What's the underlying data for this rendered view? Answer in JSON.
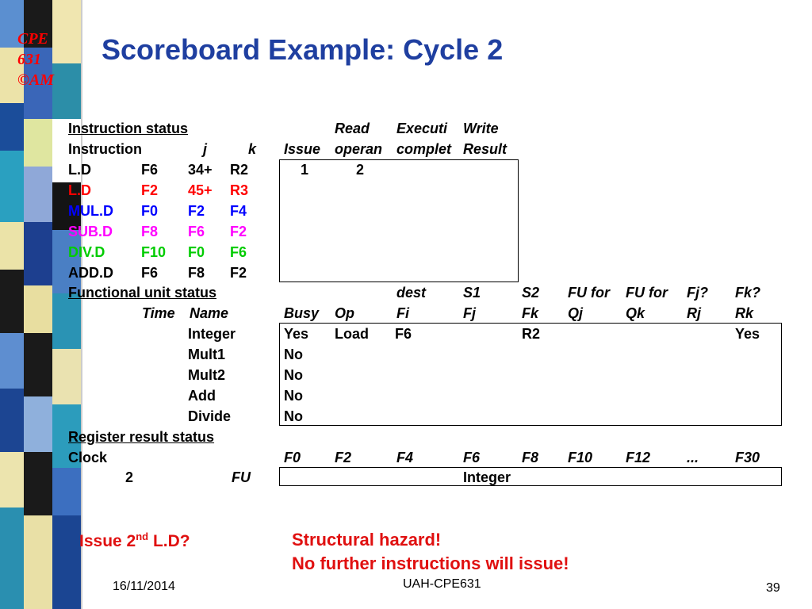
{
  "corner_logo": {
    "line1": "CPE",
    "line2": "631",
    "line3": "©AM"
  },
  "title": "Scoreboard Example: Cycle 2",
  "instruction_status": {
    "header": "Instruction status",
    "col_read": "Read",
    "col_exec": "Executi",
    "col_write": "Write",
    "sub_instruction": "Instruction",
    "sub_j": "j",
    "sub_k": "k",
    "sub_issue": "Issue",
    "sub_read": "operan",
    "sub_exec": "complet",
    "sub_write": "Result",
    "rows": [
      {
        "op": "L.D",
        "d": "F6",
        "j": "34+",
        "k": "R2",
        "issue": "1",
        "read": "2",
        "color": "#000000"
      },
      {
        "op": "L.D",
        "d": "F2",
        "j": "45+",
        "k": "R3",
        "issue": "",
        "read": "",
        "color": "#ff0000"
      },
      {
        "op": "MUL.D",
        "d": "F0",
        "j": "F2",
        "k": "F4",
        "issue": "",
        "read": "",
        "color": "#0000ff"
      },
      {
        "op": "SUB.D",
        "d": "F8",
        "j": "F6",
        "k": "F2",
        "issue": "",
        "read": "",
        "color": "#ff00ff"
      },
      {
        "op": "DIV.D",
        "d": "F10",
        "j": "F0",
        "k": "F6",
        "issue": "",
        "read": "",
        "color": "#00cc00"
      },
      {
        "op": "ADD.D",
        "d": "F6",
        "j": "F8",
        "k": "F2",
        "issue": "",
        "read": "",
        "color": "#000000"
      }
    ]
  },
  "functional_unit_status": {
    "header": "Functional unit status",
    "h_dest": "dest",
    "h_s1": "S1",
    "h_s2": "S2",
    "h_fuj": "FU for",
    "h_fuk": "FU for",
    "h_fjq": "Fj?",
    "h_fkq": "Fk?",
    "c_time": "Time",
    "c_name": "Name",
    "c_busy": "Busy",
    "c_op": "Op",
    "c_fi": "Fi",
    "c_fj": "Fj",
    "c_fk": "Fk",
    "c_qj": "Qj",
    "c_qk": "Qk",
    "c_rj": "Rj",
    "c_rk": "Rk",
    "units": [
      {
        "name": "Integer",
        "busy": "Yes",
        "op": "Load",
        "fi": "F6",
        "fk": "R2",
        "rk": "Yes"
      },
      {
        "name": "Mult1",
        "busy": "No",
        "op": "",
        "fi": "",
        "fk": "",
        "rk": ""
      },
      {
        "name": "Mult2",
        "busy": "No",
        "op": "",
        "fi": "",
        "fk": "",
        "rk": ""
      },
      {
        "name": "Add",
        "busy": "No",
        "op": "",
        "fi": "",
        "fk": "",
        "rk": ""
      },
      {
        "name": "Divide",
        "busy": "No",
        "op": "",
        "fi": "",
        "fk": "",
        "rk": ""
      }
    ]
  },
  "register_result_status": {
    "header": "Register result status",
    "clock_label": "Clock",
    "clock_value": "2",
    "fu_label": "FU",
    "registers": [
      "F0",
      "F2",
      "F4",
      "F6",
      "F8",
      "F10",
      "F12",
      "...",
      "F30"
    ],
    "f6_unit": "Integer"
  },
  "notes": {
    "issue_question_pre": "Issue 2",
    "issue_question_sup": "nd",
    "issue_question_post": " L.D?",
    "hazard_line1": "Structural hazard!",
    "hazard_line2": "No further instructions will issue!"
  },
  "footer": {
    "date": "16/11/2014",
    "center": "UAH-CPE631",
    "page": "39"
  },
  "colors": {
    "title": "#1f3fa0",
    "accent_red": "#ff0000"
  }
}
